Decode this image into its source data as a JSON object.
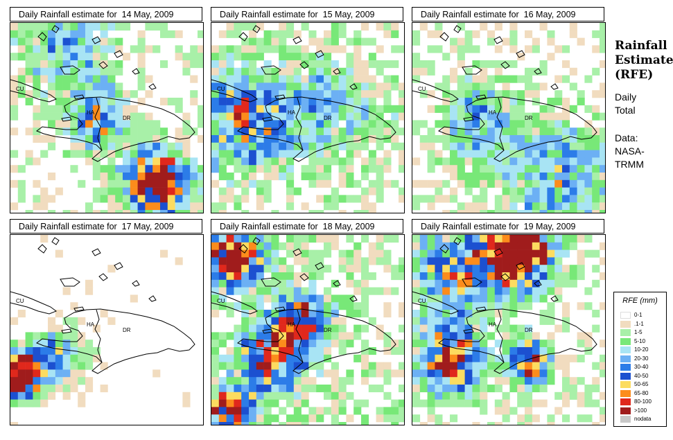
{
  "panels": [
    {
      "title": "Daily Rainfall estimate for  14 May, 2009",
      "seed": 14,
      "profile": "scattered_south"
    },
    {
      "title": "Daily Rainfall estimate for  15 May, 2009",
      "seed": 15,
      "profile": "light_west"
    },
    {
      "title": "Daily Rainfall estimate for  16 May, 2009",
      "seed": 16,
      "profile": "light_wide"
    },
    {
      "title": "Daily Rainfall estimate for  17 May, 2009",
      "seed": 17,
      "profile": "heavy_west"
    },
    {
      "title": "Daily Rainfall estimate for  18 May, 2009",
      "seed": 18,
      "profile": "heavy_nw"
    },
    {
      "title": "Daily Rainfall estimate for  19 May, 2009",
      "seed": 19,
      "profile": "heavy_north_south"
    }
  ],
  "map_labels": {
    "cuba": "CU",
    "haiti": "HA",
    "dominican_republic": "DR"
  },
  "side": {
    "title_lines": [
      "Rainfall",
      "Estimate",
      "(RFE)"
    ],
    "info_lines": [
      "Daily",
      "Total"
    ],
    "data_lines": [
      "Data:",
      "NASA-",
      "TRMM"
    ]
  },
  "legend": {
    "title": "RFE (mm)",
    "items": [
      {
        "label": "0-1",
        "color": "#ffffff"
      },
      {
        "label": ".1-1",
        "color": "#f1dcbf"
      },
      {
        "label": "1-5",
        "color": "#a8f0a8"
      },
      {
        "label": "5-10",
        "color": "#78e878"
      },
      {
        "label": "10-20",
        "color": "#a8e4f4"
      },
      {
        "label": "20-30",
        "color": "#6cb0f4"
      },
      {
        "label": "30-40",
        "color": "#2c7ce8"
      },
      {
        "label": "40-50",
        "color": "#1c50d0"
      },
      {
        "label": "50-65",
        "color": "#fcdc60"
      },
      {
        "label": "65-80",
        "color": "#fc8c1c"
      },
      {
        "label": "80-100",
        "color": "#e0281c"
      },
      {
        "label": ">100",
        "color": "#a01c1c"
      },
      {
        "label": "nodata",
        "color": "#c8c8c8"
      }
    ]
  }
}
